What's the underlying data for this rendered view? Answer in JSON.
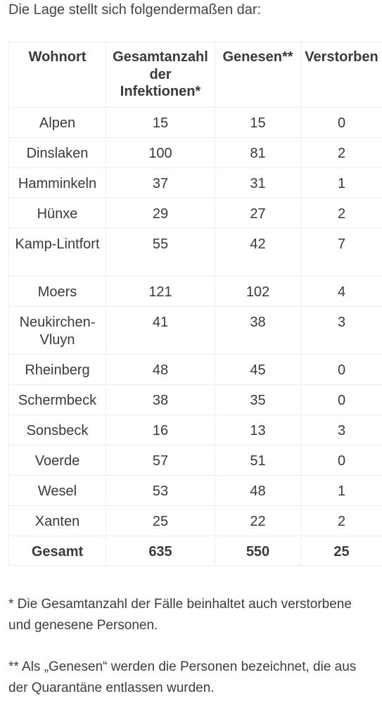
{
  "intro": "Die Lage stellt sich folgendermaßen dar:",
  "table": {
    "headers": {
      "wohnort": "Wohnort",
      "gesamt": "Gesamtanzahl der Infektionen*",
      "genesen": "Genesen**",
      "verstorben": "Verstorben"
    },
    "rows": [
      {
        "ort": "Alpen",
        "gesamt": "15",
        "genesen": "15",
        "verstorben": "0"
      },
      {
        "ort": "Dinslaken",
        "gesamt": "100",
        "genesen": "81",
        "verstorben": "2"
      },
      {
        "ort": "Hamminkeln",
        "gesamt": "37",
        "genesen": "31",
        "verstorben": "1"
      },
      {
        "ort": "Hünxe",
        "gesamt": "29",
        "genesen": "27",
        "verstorben": "2"
      },
      {
        "ort": "Kamp-Lintfort",
        "gesamt": "55",
        "genesen": "42",
        "verstorben": "7"
      },
      {
        "ort": "Moers",
        "gesamt": "121",
        "genesen": "102",
        "verstorben": "4"
      },
      {
        "ort": "Neukirchen-Vluyn",
        "gesamt": "41",
        "genesen": "38",
        "verstorben": "3"
      },
      {
        "ort": "Rheinberg",
        "gesamt": "48",
        "genesen": "45",
        "verstorben": "0"
      },
      {
        "ort": "Schermbeck",
        "gesamt": "38",
        "genesen": "35",
        "verstorben": "0"
      },
      {
        "ort": "Sonsbeck",
        "gesamt": "16",
        "genesen": "13",
        "verstorben": "3"
      },
      {
        "ort": "Voerde",
        "gesamt": "57",
        "genesen": "51",
        "verstorben": "0"
      },
      {
        "ort": "Wesel",
        "gesamt": "53",
        "genesen": "48",
        "verstorben": "1"
      },
      {
        "ort": "Xanten",
        "gesamt": "25",
        "genesen": "22",
        "verstorben": "2"
      }
    ],
    "total": {
      "label": "Gesamt",
      "gesamt": "635",
      "genesen": "550",
      "verstorben": "25"
    }
  },
  "notes": {
    "note1": "* Die Gesamtanzahl der Fälle beinhaltet auch verstorbene und genesene Personen.",
    "note2": "** Als „Genesen“ werden die Personen bezeichnet, die aus der Quarantäne entlassen wurden."
  }
}
